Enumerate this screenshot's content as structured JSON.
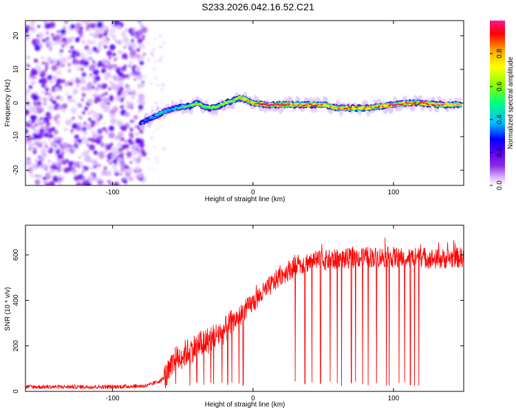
{
  "figure_title": "S233.2026.042.16.52.C21",
  "chart_data": [
    {
      "type": "heatmap",
      "title": "S233.2026.042.16.52.C21",
      "xlabel": "Height of straight line (km)",
      "ylabel": "Frequency (Hz)",
      "xlim": [
        -162,
        150
      ],
      "ylim": [
        -24.5,
        24.5
      ],
      "xticks": [
        -100,
        0,
        100
      ],
      "yticks": [
        -20,
        -10,
        0,
        10,
        20
      ],
      "colorbar": {
        "label": "Normalized spectral amplitude",
        "range": [
          0,
          1
        ],
        "ticks": [
          "0.0",
          "0.2",
          "0.4",
          "0.6",
          "0.8"
        ],
        "colors": [
          "#ffffff",
          "#d9b3ff",
          "#8a2be2",
          "#5a00ff",
          "#0000ff",
          "#00c0ff",
          "#00ff80",
          "#7fff00",
          "#ffff00",
          "#ffa500",
          "#ff0000",
          "#ff1493"
        ]
      },
      "noise_region": {
        "x_range": [
          -162,
          -80
        ],
        "amplitude": 0.25
      },
      "signal_track": {
        "x": [
          -80,
          -75,
          -70,
          -65,
          -60,
          -55,
          -50,
          -45,
          -40,
          -35,
          -30,
          -25,
          -20,
          -15,
          -10,
          -5,
          0,
          10,
          20,
          30,
          40,
          50,
          60,
          70,
          80,
          90,
          100,
          110,
          120,
          130,
          140,
          148
        ],
        "y": [
          -6,
          -5,
          -4,
          -3,
          -2,
          -1.5,
          -1,
          -1,
          0,
          -1,
          -1.5,
          -1,
          0,
          0.5,
          1.5,
          1,
          0,
          -0.5,
          -0.5,
          -0.5,
          -0.5,
          -0.5,
          -1.5,
          -1.5,
          -1.5,
          -1,
          -0.5,
          0,
          0,
          -0.5,
          -0.5,
          -0.5
        ],
        "amplitude": [
          0.3,
          0.35,
          0.4,
          0.45,
          0.4,
          0.45,
          0.5,
          0.55,
          0.6,
          0.55,
          0.6,
          0.6,
          0.65,
          0.6,
          0.7,
          0.75,
          0.8,
          0.95,
          0.95,
          0.8,
          0.85,
          0.8,
          0.8,
          0.85,
          0.8,
          0.85,
          0.9,
          0.9,
          0.85,
          0.9,
          0.85,
          0.8
        ]
      }
    },
    {
      "type": "line",
      "xlabel": "Height of straight line (km)",
      "ylabel": "SNR (10 * v/v)",
      "xlim": [
        -162,
        150
      ],
      "ylim": [
        0,
        730
      ],
      "xticks": [
        -100,
        0,
        100
      ],
      "yticks": [
        0,
        200,
        400,
        600
      ],
      "color": "#ff0000",
      "trend": {
        "x": [
          -162,
          -100,
          -75,
          -65,
          -60,
          -55,
          -50,
          -40,
          -30,
          -20,
          -10,
          0,
          10,
          20,
          30,
          40,
          50,
          60,
          70,
          80,
          90,
          100,
          110,
          120,
          130,
          140,
          150
        ],
        "y": [
          20,
          20,
          25,
          50,
          80,
          140,
          160,
          200,
          230,
          270,
          330,
          390,
          450,
          510,
          550,
          570,
          575,
          580,
          585,
          590,
          590,
          590,
          585,
          590,
          580,
          585,
          590
        ]
      },
      "dropouts_x": [
        -55,
        -45,
        -40,
        -35,
        -30,
        -28,
        -22,
        -18,
        -15,
        -10,
        -7,
        30,
        37,
        42,
        48,
        55,
        60,
        63,
        70,
        73,
        78,
        82,
        88,
        95,
        97,
        104,
        108,
        112,
        115,
        118
      ]
    }
  ]
}
